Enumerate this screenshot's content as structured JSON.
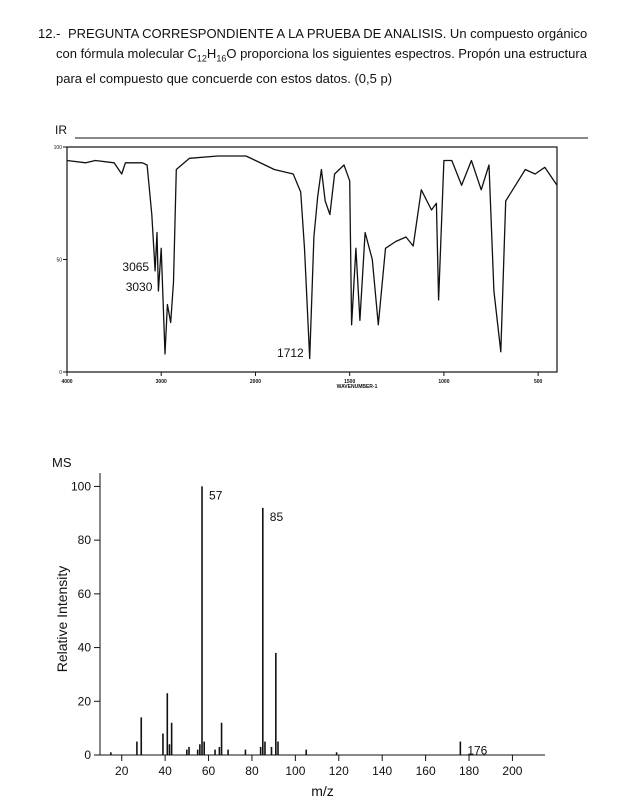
{
  "question": {
    "number": "12.-",
    "text_before": "PREGUNTA CORRESPONDIENTE A LA PRUEBA DE ANALISIS. Un compuesto orgánico con fórmula molecular",
    "formula": [
      "C",
      "12",
      "H",
      "16",
      "O"
    ],
    "text_after": "proporciona los siguientes espectros. Propón una estructura para el compuesto que concuerde con estos datos. (0,5 p)"
  },
  "chart_data": [
    {
      "type": "line",
      "title": "IR",
      "xlabel": "WAVENUMBER-1",
      "x": [
        4000,
        3800,
        3700,
        3500,
        3420,
        3380,
        3200,
        3150,
        3100,
        3065,
        3045,
        3030,
        3000,
        2960,
        2935,
        2900,
        2870,
        2840,
        2700,
        2400,
        2100,
        2000,
        1900,
        1800,
        1760,
        1740,
        1712,
        1690,
        1670,
        1650,
        1630,
        1605,
        1580,
        1530,
        1500,
        1490,
        1467,
        1446,
        1418,
        1380,
        1348,
        1310,
        1256,
        1201,
        1163,
        1120,
        1066,
        1040,
        1028,
        1000,
        958,
        906,
        854,
        802,
        761,
        735,
        698,
        672,
        620,
        568,
        516,
        465,
        400
      ],
      "values": [
        94,
        93,
        94,
        93,
        88,
        93,
        93,
        92,
        70,
        45,
        62,
        36,
        55,
        8,
        30,
        22,
        40,
        90,
        95,
        96,
        96,
        94,
        90,
        88,
        80,
        55,
        6,
        60,
        78,
        90,
        76,
        70,
        88,
        92,
        85,
        21,
        55,
        23,
        62,
        50,
        21,
        55,
        58,
        60,
        56,
        81,
        72,
        75,
        32,
        94,
        94,
        83,
        94,
        81,
        92,
        36,
        9,
        76,
        83,
        90,
        88,
        91,
        83
      ],
      "color": "#111111",
      "xlim": [
        4000,
        400
      ],
      "xticks": [
        4000,
        3000,
        2000,
        1500,
        1000,
        500
      ],
      "ylim": [
        0,
        100
      ],
      "yticks": [
        0,
        50,
        100
      ],
      "annotations": [
        3065,
        3030,
        1712
      ]
    },
    {
      "type": "stick",
      "title": "MS",
      "xlabel": "m/z",
      "ylabel": "Relative Intensity",
      "x": [
        15,
        27,
        29,
        39,
        41,
        42,
        43,
        50,
        51,
        55,
        56,
        57,
        58,
        63,
        65,
        66,
        69,
        77,
        84,
        85,
        86,
        89,
        91,
        92,
        105,
        119,
        176
      ],
      "values": [
        1,
        5,
        14,
        8,
        23,
        4,
        12,
        2,
        3,
        2,
        4,
        100,
        5,
        2,
        3,
        12,
        2,
        2,
        3,
        92,
        5,
        3,
        38,
        5,
        2,
        1,
        5
      ],
      "color": "#111111",
      "xlim": [
        10,
        215
      ],
      "xticks": [
        20,
        40,
        60,
        80,
        100,
        120,
        140,
        160,
        180,
        200
      ],
      "ylim": [
        0,
        105
      ],
      "yticks": [
        0,
        20,
        40,
        60,
        80,
        100
      ],
      "labeled_peaks": [
        57,
        85,
        176
      ]
    }
  ]
}
